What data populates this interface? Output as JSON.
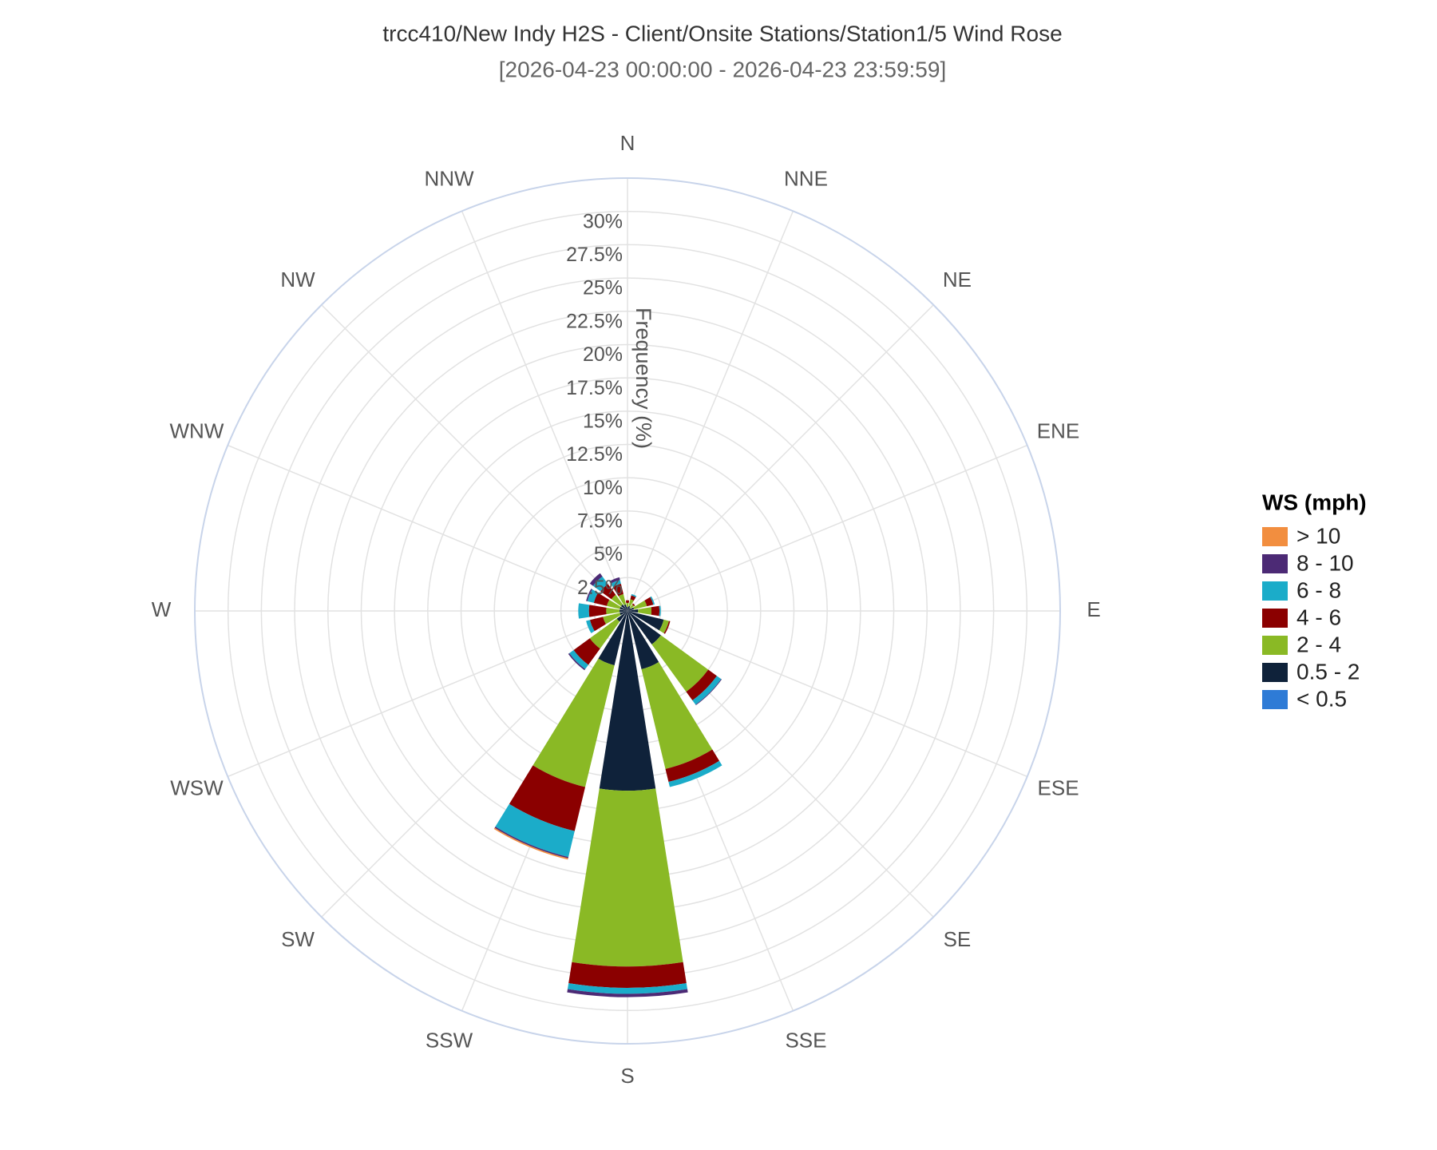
{
  "chart_data": {
    "type": "windrose",
    "title": "trcc410/New Indy H2S - Client/Onsite Stations/Station1/5 Wind Rose",
    "subtitle": "[2026-04-23 00:00:00 - 2026-04-23 23:59:59]",
    "radial_axis_label": "Frequency (%)",
    "legend_title": "WS (mph)",
    "categories": [
      "N",
      "NNE",
      "NE",
      "ENE",
      "E",
      "ESE",
      "SE",
      "SSE",
      "S",
      "SSW",
      "SW",
      "WSW",
      "W",
      "WNW",
      "NW",
      "NNW"
    ],
    "series": [
      {
        "name": "< 0.5",
        "color": "#2e7bd6",
        "values": [
          0,
          0,
          0,
          0,
          0,
          0,
          0,
          0,
          0,
          0,
          0,
          0,
          0,
          0,
          0,
          0
        ]
      },
      {
        "name": "0.5 - 2",
        "color": "#0f223a",
        "values": [
          0.3,
          0.4,
          0.3,
          0.5,
          0.8,
          2.8,
          3.1,
          4.5,
          13.5,
          4.2,
          1.0,
          0.6,
          0.6,
          0.6,
          0.6,
          0.5
        ]
      },
      {
        "name": "2 - 4",
        "color": "#8ab925",
        "values": [
          0.3,
          0.5,
          0.3,
          1.0,
          1.0,
          0.4,
          4.4,
          7.7,
          13.2,
          9.4,
          2.5,
          1.3,
          1.0,
          1.0,
          0.9,
          0.8
        ]
      },
      {
        "name": "4 - 6",
        "color": "#8b0000",
        "values": [
          0.2,
          0.3,
          0.1,
          0.5,
          0.6,
          0.1,
          0.8,
          1.0,
          1.6,
          3.4,
          1.5,
          1.0,
          1.3,
          1.0,
          1.0,
          0.8
        ]
      },
      {
        "name": "6 - 8",
        "color": "#1bacc9",
        "values": [
          0,
          0.1,
          0,
          0.1,
          0.1,
          0,
          0.4,
          0.4,
          0.45,
          2.0,
          0.4,
          0.3,
          0.8,
          0.5,
          0.7,
          0.3
        ]
      },
      {
        "name": "8 - 10",
        "color": "#4c2a75",
        "values": [
          0,
          0,
          0,
          0,
          0,
          0,
          0.05,
          0,
          0.25,
          0.1,
          0.1,
          0,
          0,
          0.1,
          0.3,
          0.2
        ]
      },
      {
        "name": "> 10",
        "color": "#f28e3f",
        "values": [
          0,
          0,
          0,
          0,
          0,
          0,
          0,
          0,
          0,
          0.1,
          0,
          0,
          0,
          0,
          0,
          0
        ]
      }
    ],
    "ylim": [
      0,
      32.5
    ],
    "yticks": [
      {
        "value": 2.5,
        "label": "2.5%"
      },
      {
        "value": 5,
        "label": "5%"
      },
      {
        "value": 7.5,
        "label": "7.5%"
      },
      {
        "value": 10,
        "label": "10%"
      },
      {
        "value": 12.5,
        "label": "12.5%"
      },
      {
        "value": 15,
        "label": "15%"
      },
      {
        "value": 17.5,
        "label": "17.5%"
      },
      {
        "value": 20,
        "label": "20%"
      },
      {
        "value": 22.5,
        "label": "22.5%"
      },
      {
        "value": 25,
        "label": "25%"
      },
      {
        "value": 27.5,
        "label": "27.5%"
      },
      {
        "value": 30,
        "label": "30%"
      }
    ],
    "grid": true
  }
}
